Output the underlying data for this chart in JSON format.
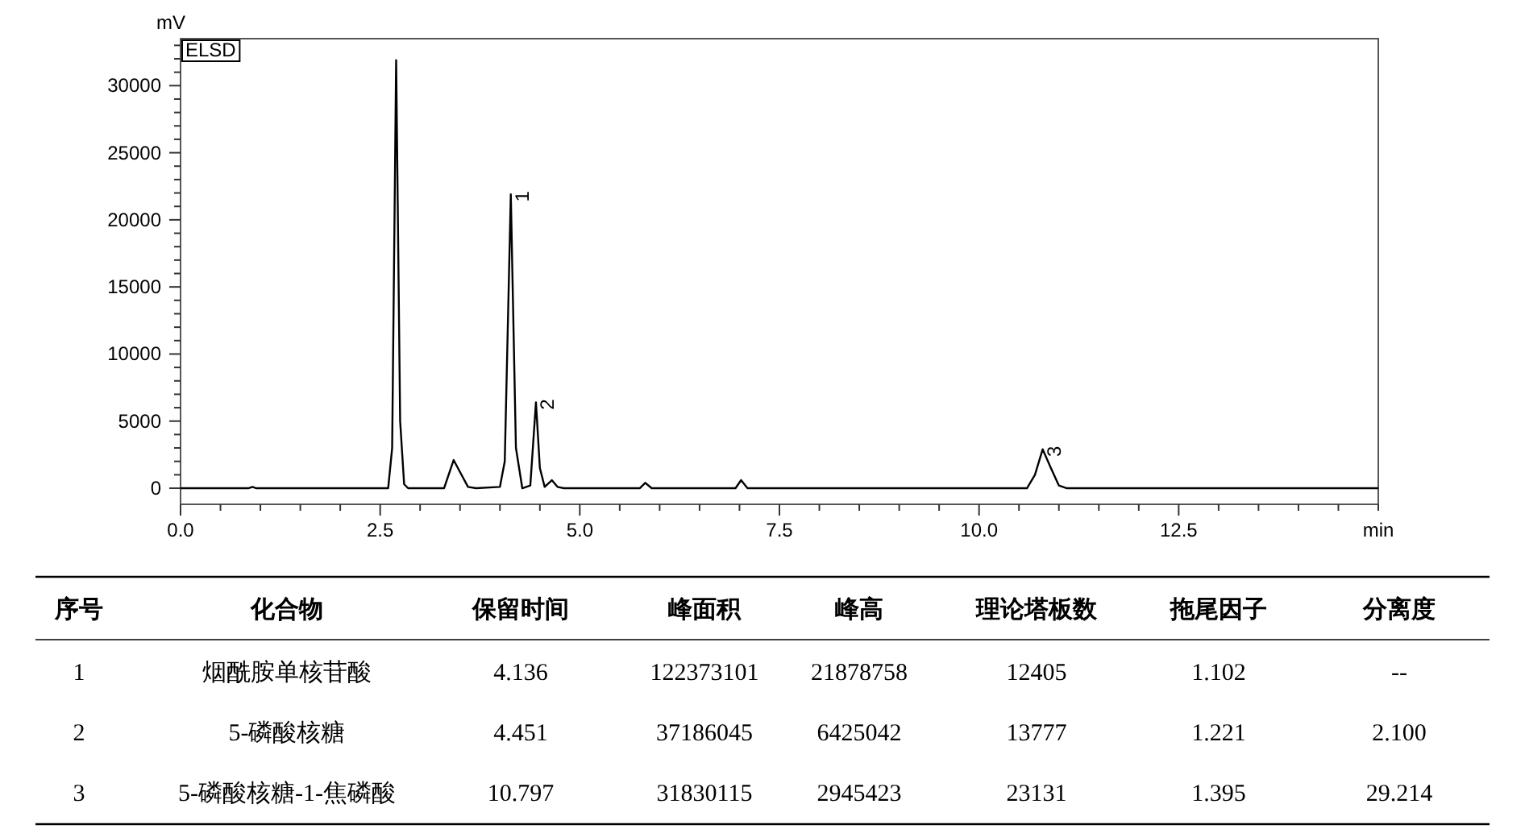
{
  "chart_data": [
    {
      "type": "line",
      "xlabel": "min",
      "ylabel": "mV",
      "grid": false,
      "marker": "none",
      "line_style": "solid",
      "xlim": [
        0,
        15
      ],
      "ylim": [
        -1200,
        33500
      ],
      "xticks": [
        {
          "value": 0,
          "label": "0.0"
        },
        {
          "value": 0.5,
          "label": null
        },
        {
          "value": 1,
          "label": null
        },
        {
          "value": 1.5,
          "label": null
        },
        {
          "value": 2,
          "label": null
        },
        {
          "value": 2.5,
          "label": "2.5"
        },
        {
          "value": 3,
          "label": null
        },
        {
          "value": 3.5,
          "label": null
        },
        {
          "value": 4,
          "label": null
        },
        {
          "value": 4.5,
          "label": null
        },
        {
          "value": 5,
          "label": "5.0"
        },
        {
          "value": 5.5,
          "label": null
        },
        {
          "value": 6,
          "label": null
        },
        {
          "value": 6.5,
          "label": null
        },
        {
          "value": 7,
          "label": null
        },
        {
          "value": 7.5,
          "label": "7.5"
        },
        {
          "value": 8,
          "label": null
        },
        {
          "value": 8.5,
          "label": null
        },
        {
          "value": 9,
          "label": null
        },
        {
          "value": 9.5,
          "label": null
        },
        {
          "value": 10,
          "label": "10.0"
        },
        {
          "value": 10.5,
          "label": null
        },
        {
          "value": 11,
          "label": null
        },
        {
          "value": 11.5,
          "label": null
        },
        {
          "value": 12,
          "label": null
        },
        {
          "value": 12.5,
          "label": "12.5"
        },
        {
          "value": 13,
          "label": null
        },
        {
          "value": 13.5,
          "label": null
        },
        {
          "value": 14,
          "label": null
        },
        {
          "value": 14.5,
          "label": null
        },
        {
          "value": 15,
          "label": null
        }
      ],
      "yticks": [
        0,
        {
          "value": 1000,
          "label": null
        },
        {
          "value": 2000,
          "label": null
        },
        {
          "value": 3000,
          "label": null
        },
        {
          "value": 4000,
          "label": null
        },
        5000,
        {
          "value": 6000,
          "label": null
        },
        {
          "value": 7000,
          "label": null
        },
        {
          "value": 8000,
          "label": null
        },
        {
          "value": 9000,
          "label": null
        },
        10000,
        {
          "value": 11000,
          "label": null
        },
        {
          "value": 12000,
          "label": null
        },
        {
          "value": 13000,
          "label": null
        },
        {
          "value": 14000,
          "label": null
        },
        15000,
        {
          "value": 16000,
          "label": null
        },
        {
          "value": 17000,
          "label": null
        },
        {
          "value": 18000,
          "label": null
        },
        {
          "value": 19000,
          "label": null
        },
        20000,
        {
          "value": 21000,
          "label": null
        },
        {
          "value": 22000,
          "label": null
        },
        {
          "value": 23000,
          "label": null
        },
        {
          "value": 24000,
          "label": null
        },
        25000,
        {
          "value": 26000,
          "label": null
        },
        {
          "value": 27000,
          "label": null
        },
        {
          "value": 28000,
          "label": null
        },
        {
          "value": 29000,
          "label": null
        },
        30000,
        {
          "value": 31000,
          "label": null
        },
        {
          "value": 32000,
          "label": null
        },
        {
          "value": 33000,
          "label": null
        }
      ],
      "series": [
        {
          "color": "#000000",
          "x": [
            0,
            0.85,
            0.9,
            0.95,
            2.6,
            2.65,
            2.7,
            2.75,
            2.8,
            2.85,
            3.3,
            3.42,
            3.5,
            3.6,
            3.7,
            4.0,
            4.06,
            4.136,
            4.2,
            4.28,
            4.38,
            4.451,
            4.5,
            4.56,
            4.65,
            4.72,
            4.8,
            5.75,
            5.82,
            5.9,
            6.95,
            7.02,
            7.1,
            10.6,
            10.7,
            10.797,
            10.9,
            11.0,
            11.1,
            15
          ],
          "values": [
            0,
            0,
            100,
            0,
            0,
            3000,
            31900,
            5000,
            300,
            0,
            0,
            2100,
            1200,
            100,
            0,
            100,
            2000,
            21900,
            3000,
            0,
            200,
            6400,
            1500,
            100,
            600,
            100,
            0,
            0,
            400,
            0,
            0,
            600,
            0,
            0,
            1000,
            2900,
            1500,
            200,
            0,
            0
          ]
        }
      ],
      "annotations": [
        "ELSD",
        {
          "text": "1",
          "x": 4.136,
          "y": 21900
        },
        {
          "text": "2",
          "x": 4.451,
          "y": 6400
        },
        {
          "text": "3",
          "x": 10.797,
          "y": 2900
        }
      ]
    },
    {
      "type": "other",
      "categories": [
        "序号",
        "化合物",
        "保留时间",
        "峰面积",
        "峰高",
        "理论塔板数",
        "拖尾因子",
        "分离度"
      ],
      "annotations": [
        "1",
        "烟酰胺单核苷酸",
        "4.136",
        "122373101",
        "21878758",
        "12405",
        "1.102",
        "--",
        "2",
        "5-磷酸核糖",
        "4.451",
        "37186045",
        "6425042",
        "13777",
        "1.221",
        "2.100",
        "3",
        "5-磷酸核糖-1-焦磷酸",
        "10.797",
        "31830115",
        "2945423",
        "23131",
        "1.395",
        "29.214"
      ]
    }
  ]
}
